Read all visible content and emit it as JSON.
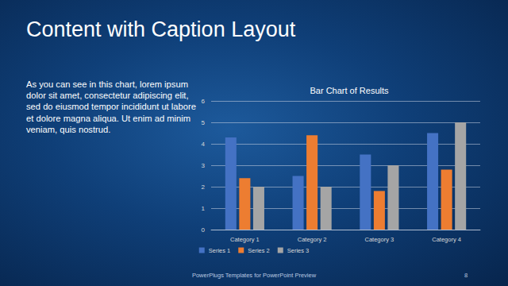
{
  "slide": {
    "title": "Content with Caption Layout",
    "caption": "As you can see in this chart, lorem ipsum dolor sit amet, consectetur adipiscing elit, sed do eiusmod tempor incididunt ut labore et dolore magna aliqua. Ut enim ad minim veniam, quis nostrud.",
    "footer": "PowerPlugs Templates for PowerPoint Preview",
    "page_number": 8
  },
  "chart_data": {
    "type": "bar",
    "title": "Bar Chart of Results",
    "categories": [
      "Category 1",
      "Category 2",
      "Category 3",
      "Category 4"
    ],
    "series": [
      {
        "name": "Series 1",
        "color": "#4472c4",
        "values": [
          4.3,
          2.5,
          3.5,
          4.5
        ]
      },
      {
        "name": "Series 2",
        "color": "#ed7d31",
        "values": [
          2.4,
          4.4,
          1.8,
          2.8
        ]
      },
      {
        "name": "Series 3",
        "color": "#a5a5a5",
        "values": [
          2,
          2,
          3,
          5
        ]
      }
    ],
    "ylim": [
      0,
      6
    ],
    "yticks": [
      0,
      1,
      2,
      3,
      4,
      5,
      6
    ],
    "grid": true,
    "legend": "bottom"
  }
}
